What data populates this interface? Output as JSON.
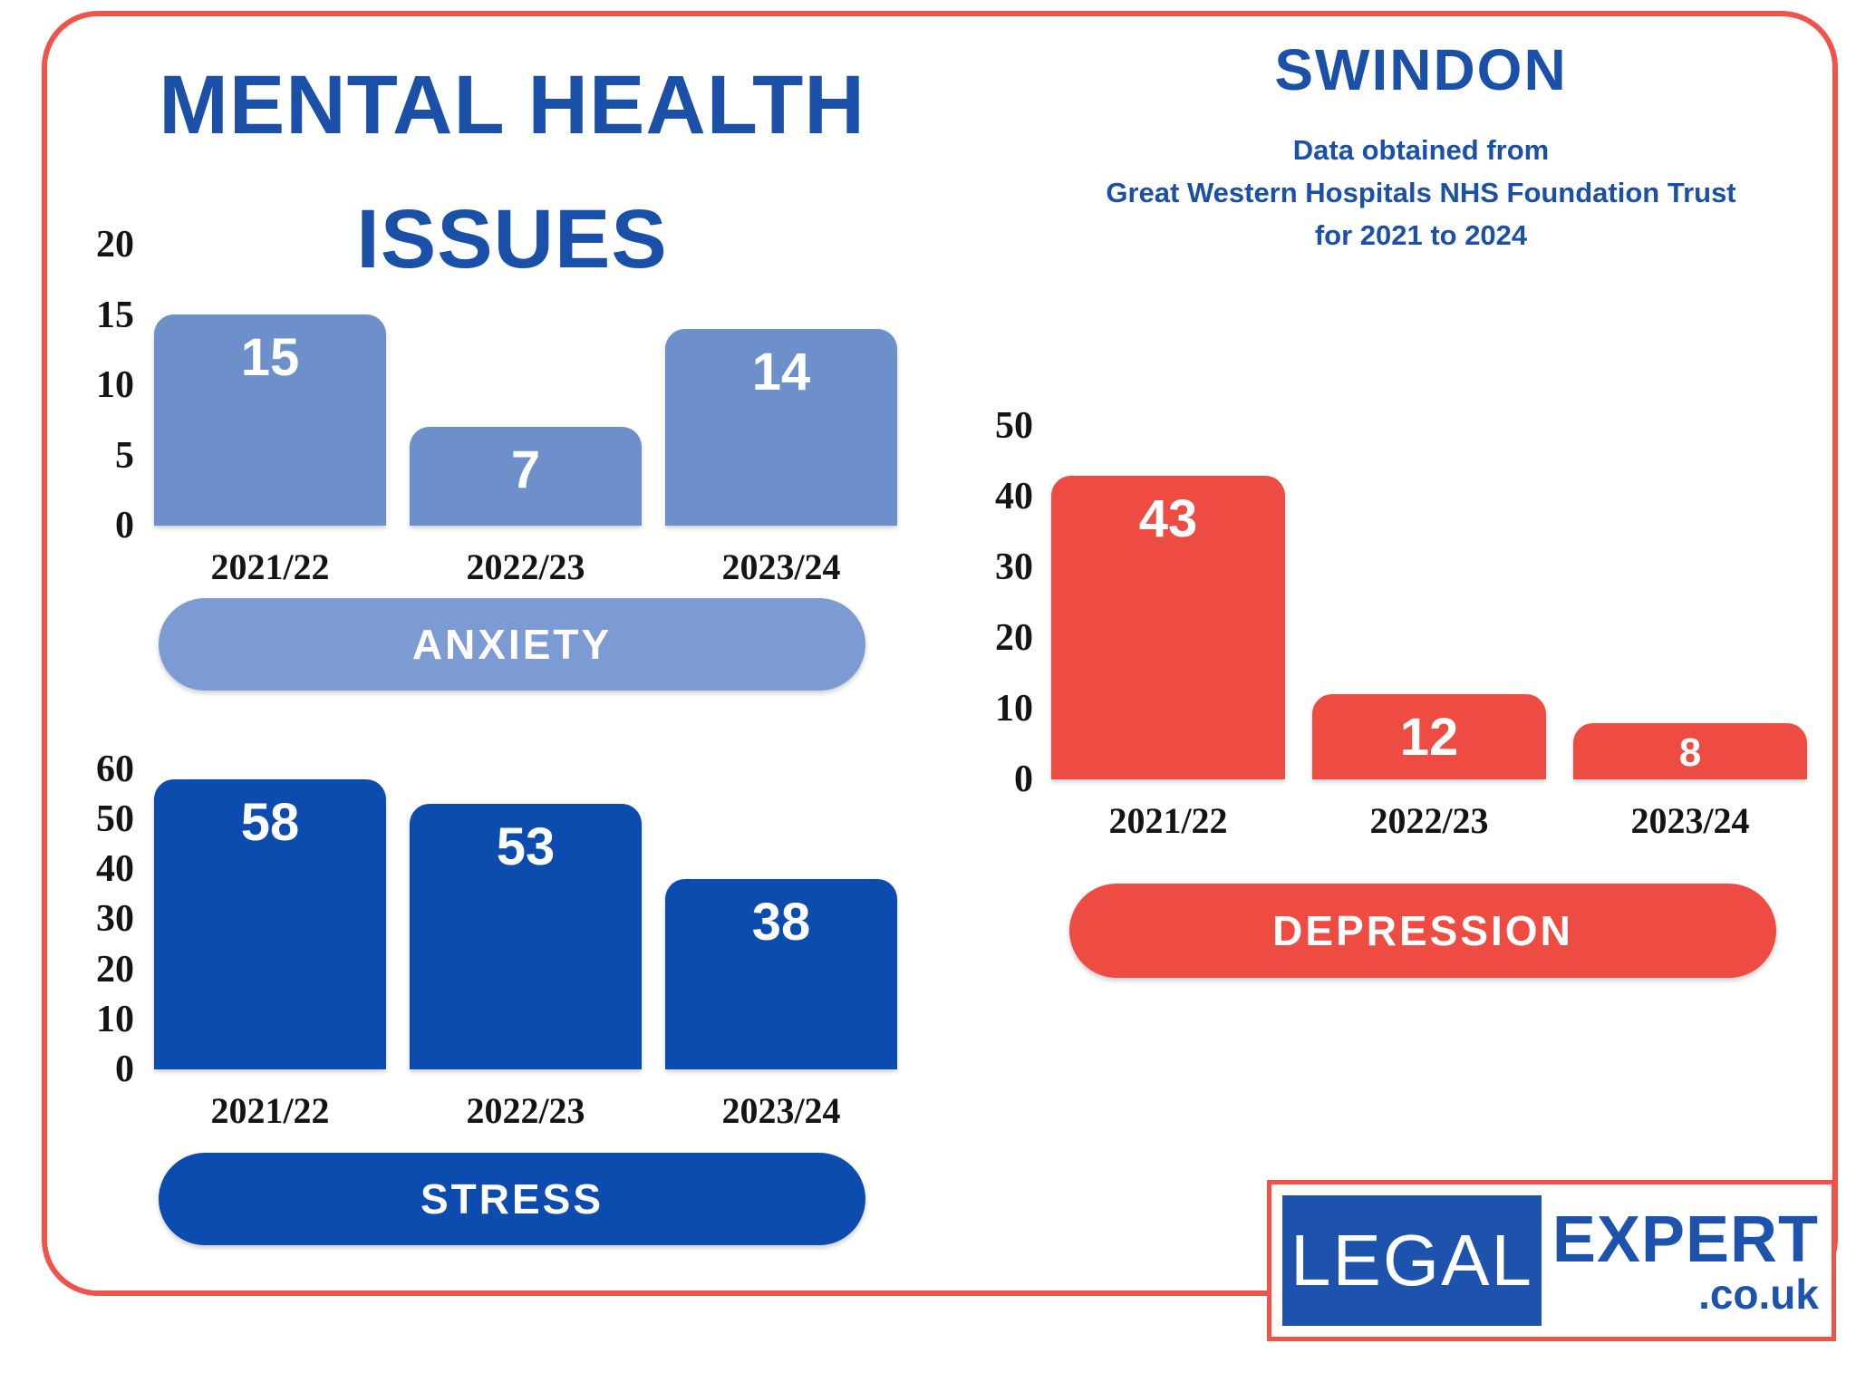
{
  "title_lines": [
    "MENTAL HEALTH",
    "ISSUES"
  ],
  "header": {
    "region": "SWINDON",
    "source_lines": [
      "Data obtained from",
      "Great Western Hospitals NHS Foundation Trust",
      "for 2021 to 2024"
    ]
  },
  "chart_data": [
    {
      "id": "anxiety",
      "type": "bar",
      "title": "ANXIETY",
      "categories": [
        "2021/22",
        "2022/23",
        "2023/24"
      ],
      "values": [
        15,
        7,
        14
      ],
      "ylim": [
        0,
        20
      ],
      "yticks": [
        20,
        15,
        10,
        5,
        0
      ],
      "grid": false,
      "legend": "none",
      "bar_color": "#6d90cb",
      "pill_color": "#7c9bd3",
      "value_label_color": "#ffffff"
    },
    {
      "id": "stress",
      "type": "bar",
      "title": "STRESS",
      "categories": [
        "2021/22",
        "2022/23",
        "2023/24"
      ],
      "values": [
        58,
        53,
        38
      ],
      "ylim": [
        0,
        60
      ],
      "yticks": [
        60,
        50,
        40,
        30,
        20,
        10,
        0
      ],
      "grid": false,
      "legend": "none",
      "bar_color": "#0d4caf",
      "pill_color": "#0d4caf",
      "value_label_color": "#ffffff"
    },
    {
      "id": "depression",
      "type": "bar",
      "title": "DEPRESSION",
      "categories": [
        "2021/22",
        "2022/23",
        "2023/24"
      ],
      "values": [
        43,
        12,
        8
      ],
      "ylim": [
        0,
        50
      ],
      "yticks": [
        50,
        40,
        30,
        20,
        10,
        0
      ],
      "grid": false,
      "legend": "none",
      "bar_color": "#ee4b43",
      "pill_color": "#ee4b43",
      "value_label_color": "#ffffff"
    }
  ],
  "logo": {
    "word1": "LEGAL",
    "word2": "EXPERT",
    "word3": ".co.uk"
  },
  "colors": {
    "heading_blue": "#1b50a8",
    "border_red": "#ef5349",
    "light_blue": "#6d90cb",
    "dark_blue": "#0d4caf",
    "red": "#ee4b43"
  }
}
